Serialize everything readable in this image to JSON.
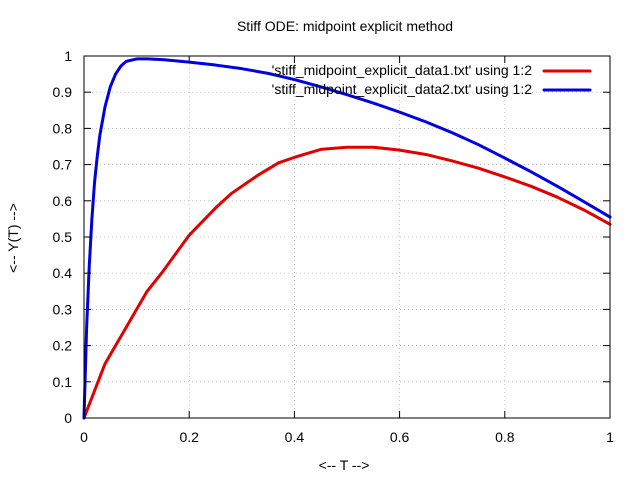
{
  "chart_data": {
    "type": "line",
    "title": "Stiff ODE: midpoint explicit method",
    "xlabel": "<-- T -->",
    "ylabel": "<-- Y(T) -->",
    "xlim": [
      0,
      1
    ],
    "ylim": [
      0,
      1
    ],
    "xticks": [
      0,
      0.2,
      0.4,
      0.6,
      0.8,
      1
    ],
    "xtick_labels": [
      "0",
      "0.2",
      "0.4",
      "0.6",
      "0.8",
      "1"
    ],
    "yticks": [
      0,
      0.1,
      0.2,
      0.3,
      0.4,
      0.5,
      0.6,
      0.7,
      0.8,
      0.9,
      1
    ],
    "ytick_labels": [
      "0",
      "0.1",
      "0.2",
      "0.3",
      "0.4",
      "0.5",
      "0.6",
      "0.7",
      "0.8",
      "0.9",
      "1"
    ],
    "grid": true,
    "legend_position": "top-right",
    "series": [
      {
        "name": "'stiff_midpoint_explicit_data1.txt' using 1:2",
        "color": "#e00000",
        "x": [
          0,
          0.02,
          0.04,
          0.06,
          0.08,
          0.1,
          0.12,
          0.15,
          0.18,
          0.2,
          0.22,
          0.25,
          0.28,
          0.3,
          0.33,
          0.37,
          0.4,
          0.45,
          0.5,
          0.55,
          0.6,
          0.65,
          0.7,
          0.75,
          0.8,
          0.85,
          0.9,
          0.95,
          1.0
        ],
        "y": [
          0.0,
          0.075,
          0.15,
          0.2,
          0.25,
          0.3,
          0.35,
          0.405,
          0.465,
          0.505,
          0.535,
          0.58,
          0.62,
          0.64,
          0.67,
          0.705,
          0.72,
          0.742,
          0.748,
          0.748,
          0.74,
          0.728,
          0.71,
          0.69,
          0.666,
          0.64,
          0.61,
          0.575,
          0.535
        ]
      },
      {
        "name": "'stiff_midpoint_explicit_data2.txt' using 1:2",
        "color": "#0000e0",
        "x": [
          0,
          0.002,
          0.005,
          0.01,
          0.015,
          0.02,
          0.025,
          0.03,
          0.04,
          0.05,
          0.06,
          0.07,
          0.08,
          0.1,
          0.12,
          0.15,
          0.2,
          0.25,
          0.3,
          0.35,
          0.4,
          0.45,
          0.5,
          0.55,
          0.6,
          0.65,
          0.7,
          0.75,
          0.8,
          0.85,
          0.9,
          0.95,
          1.0
        ],
        "y": [
          0.0,
          0.1,
          0.25,
          0.42,
          0.55,
          0.65,
          0.72,
          0.78,
          0.86,
          0.915,
          0.95,
          0.972,
          0.985,
          0.992,
          0.992,
          0.99,
          0.983,
          0.975,
          0.965,
          0.952,
          0.935,
          0.915,
          0.893,
          0.87,
          0.845,
          0.818,
          0.788,
          0.755,
          0.718,
          0.68,
          0.64,
          0.598,
          0.555
        ]
      }
    ]
  }
}
